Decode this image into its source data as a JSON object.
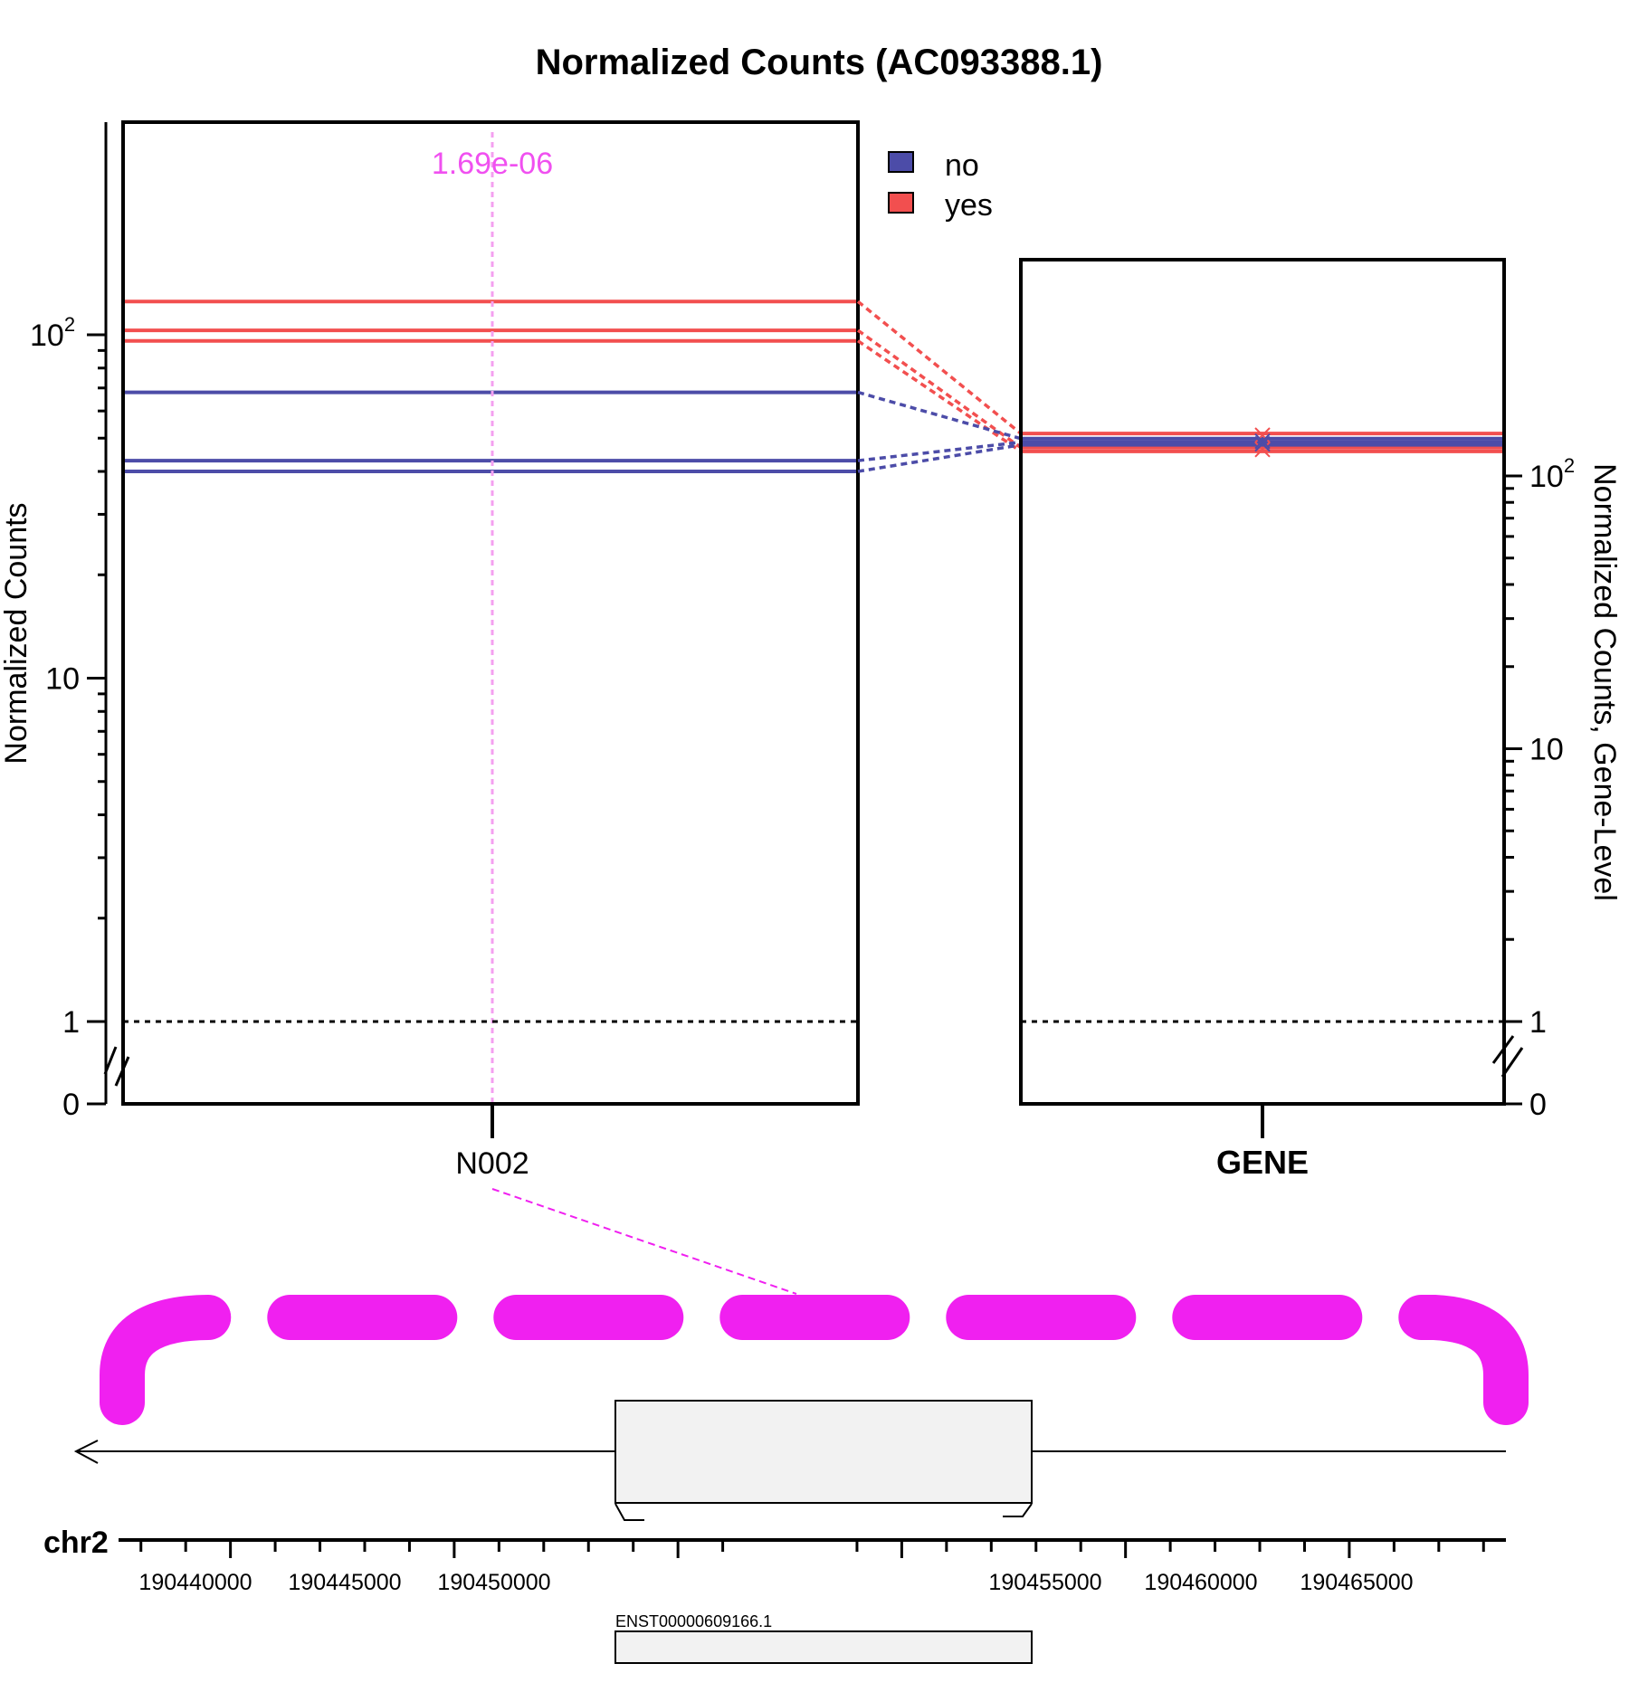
{
  "title": "Normalized Counts (AC093388.1)",
  "colors": {
    "no": "#4C4CA8",
    "yes": "#F24F4F",
    "highlight": "#F020F0",
    "pvalue_text": "#F050F0",
    "exon_fill": "#F2F2F2"
  },
  "legend": {
    "items": [
      {
        "label": "no",
        "color": "#4C4CA8"
      },
      {
        "label": "yes",
        "color": "#F24F4F"
      }
    ],
    "placement": "top-right of left panel"
  },
  "left_panel": {
    "ylabel": "Normalized Counts",
    "yticks": [
      {
        "value": 0,
        "label": "0"
      },
      {
        "value": 1,
        "label": "1"
      },
      {
        "value": 10,
        "label": "10"
      },
      {
        "value": 100,
        "label": "10",
        "sup": "2"
      }
    ],
    "xtick_label": "N002",
    "pvalue_label": "1.69e-06"
  },
  "right_panel": {
    "ylabel": "Normalized Counts, Gene-Level",
    "yticks": [
      {
        "value": 0,
        "label": "0"
      },
      {
        "value": 1,
        "label": "1"
      },
      {
        "value": 10,
        "label": "10"
      },
      {
        "value": 100,
        "label": "10",
        "sup": "2"
      }
    ],
    "xtick_label": "GENE"
  },
  "track": {
    "chrom_label": "chr2",
    "ticks": [
      "190440000",
      "190445000",
      "190450000",
      "190455000",
      "190460000",
      "190465000"
    ],
    "transcript_label": "ENST00000609166.1"
  },
  "chart_data": {
    "type": "line",
    "title": "Normalized Counts (AC093388.1)",
    "yscale": "log (with 0 break)",
    "ylim": [
      0,
      150
    ],
    "series": [
      {
        "group": "yes",
        "N002": 125,
        "GENE": 143
      },
      {
        "group": "yes",
        "N002": 103,
        "GENE": 127
      },
      {
        "group": "yes",
        "N002": 96,
        "GENE": 123
      },
      {
        "group": "no",
        "N002": 68,
        "GENE": 137
      },
      {
        "group": "no",
        "N002": 43,
        "GENE": 133
      },
      {
        "group": "no",
        "N002": 40,
        "GENE": 130
      }
    ],
    "gene_means": [
      {
        "group": "yes",
        "value": 141
      },
      {
        "group": "yes",
        "value": 125
      },
      {
        "group": "no",
        "value": 134
      },
      {
        "group": "no",
        "value": 131
      }
    ],
    "reference_line": 1,
    "genomic_axis": {
      "min": 190437500,
      "max": 190468500
    }
  }
}
